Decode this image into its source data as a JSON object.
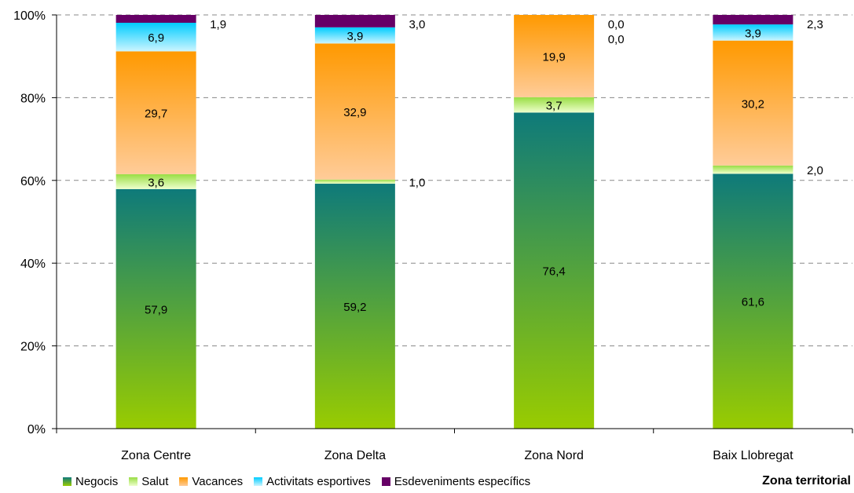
{
  "chart_data": {
    "type": "bar",
    "stacked": true,
    "categories": [
      "Zona Centre",
      "Zona Delta",
      "Zona Nord",
      "Baix Llobregat"
    ],
    "series": [
      {
        "name": "Negocis",
        "values": [
          57.9,
          59.2,
          76.4,
          61.6
        ],
        "color_top": "#0e7a7a",
        "color_bottom": "#99cc00"
      },
      {
        "name": "Salut",
        "values": [
          3.6,
          1.0,
          3.7,
          2.0
        ],
        "color_top": "#99dd44",
        "color_bottom": "#eeffcc"
      },
      {
        "name": "Vacances",
        "values": [
          29.7,
          32.9,
          19.9,
          30.2
        ],
        "color_top": "#ff9900",
        "color_bottom": "#ffcc99"
      },
      {
        "name": "Activitats esportives",
        "values": [
          6.9,
          3.9,
          0.0,
          3.9
        ],
        "color_top": "#00ccff",
        "color_bottom": "#ccf5ff"
      },
      {
        "name": "Esdeveniments específics",
        "values": [
          1.9,
          3.0,
          0.0,
          2.3
        ],
        "color_top": "#660066",
        "color_bottom": "#660066"
      }
    ],
    "value_labels": [
      [
        "57,9",
        "3,6",
        "29,7",
        "6,9",
        "1,9"
      ],
      [
        "59,2",
        "1,0",
        "32,9",
        "3,9",
        "3,0"
      ],
      [
        "76,4",
        "3,7",
        "19,9",
        "0,0",
        "0,0"
      ],
      [
        "61,6",
        "2,0",
        "30,2",
        "3,9",
        "2,3"
      ]
    ],
    "y_ticks": [
      "0%",
      "20%",
      "40%",
      "60%",
      "80%",
      "100%"
    ],
    "ylim": [
      0,
      100
    ],
    "xlabel": "Zona territorial",
    "grid": true,
    "legend_position": "bottom"
  }
}
